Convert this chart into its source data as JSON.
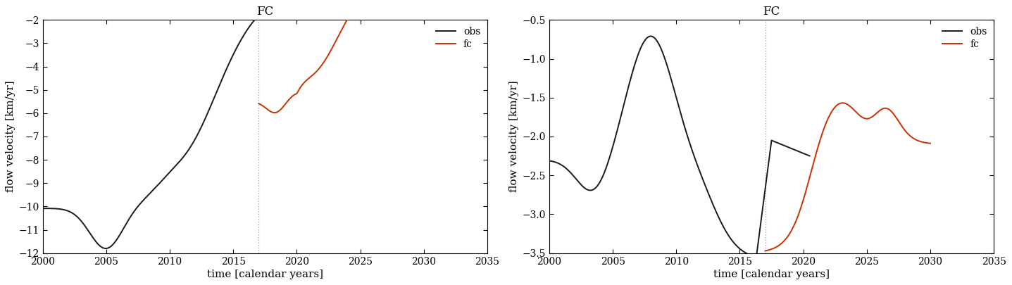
{
  "title": "FC",
  "xlabel": "time [calendar years]",
  "ylabel": "flow velocity [km/yr]",
  "fc_line_x": 2017.0,
  "obs_color": "#1a1a1a",
  "fc_color": "#c83200",
  "legend_labels": [
    "obs",
    "fc"
  ],
  "panel1": {
    "xlim": [
      2000,
      2035
    ],
    "ylim": [
      -12,
      -2
    ],
    "yticks": [
      -12,
      -11,
      -10,
      -9,
      -8,
      -7,
      -6,
      -5,
      -4,
      -3,
      -2
    ],
    "xticks": [
      2000,
      2005,
      2010,
      2015,
      2020,
      2025,
      2030,
      2035
    ]
  },
  "panel2": {
    "xlim": [
      2000,
      2035
    ],
    "ylim": [
      -3.5,
      -0.5
    ],
    "yticks": [
      -3.5,
      -3.0,
      -2.5,
      -2.0,
      -1.5,
      -1.0,
      -0.5
    ],
    "xticks": [
      2000,
      2005,
      2010,
      2015,
      2020,
      2025,
      2030,
      2035
    ]
  }
}
